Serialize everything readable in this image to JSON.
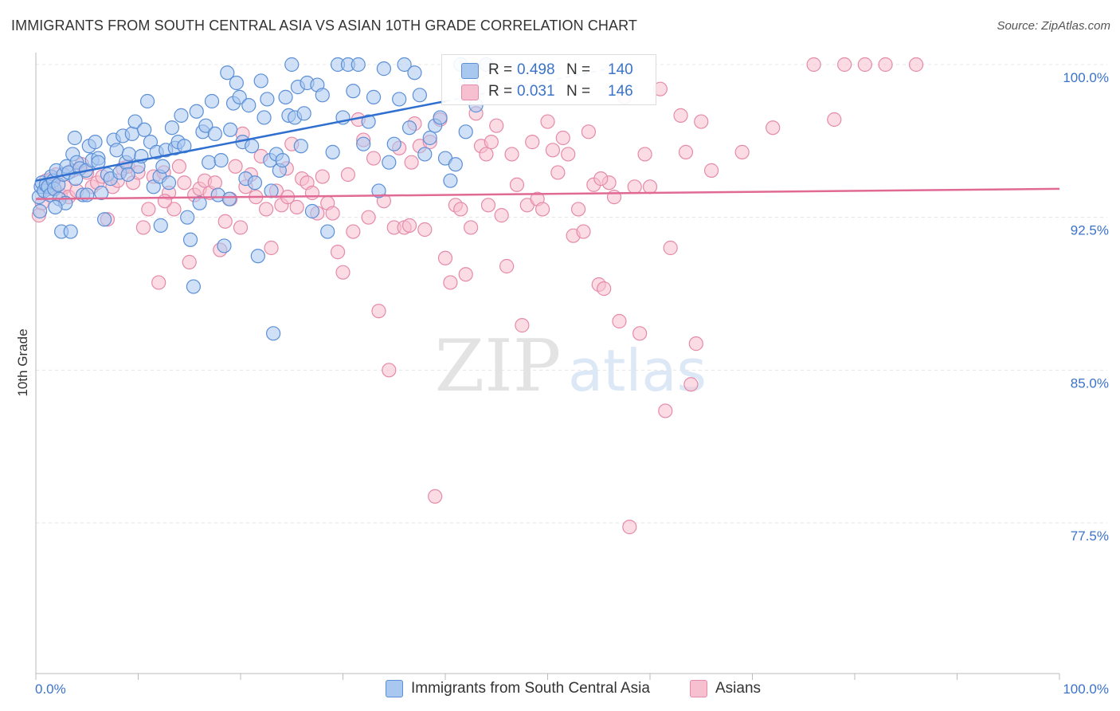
{
  "title": "IMMIGRANTS FROM SOUTH CENTRAL ASIA VS ASIAN 10TH GRADE CORRELATION CHART",
  "source": "Source: ZipAtlas.com",
  "watermark": {
    "zip": "ZIP",
    "atlas": "atlas"
  },
  "colors": {
    "blue_fill": "#a9c8f0",
    "blue_stroke": "#5b8fd6",
    "blue_line": "#2f6fd0",
    "pink_fill": "#f7c0d0",
    "pink_stroke": "#e58aa8",
    "pink_line": "#e06a94",
    "axis_text": "#3b73c9",
    "grid": "#e4e4e4"
  },
  "legend": {
    "rows": [
      {
        "r_label": "R =",
        "r_value": "0.498",
        "n_label": "N =",
        "n_value": "140",
        "color": "blue"
      },
      {
        "r_label": "R =",
        "r_value": "0.031",
        "n_label": "N =",
        "n_value": "146",
        "color": "pink"
      }
    ]
  },
  "bottom_legend": [
    {
      "label": "Immigrants from South Central Asia",
      "color": "blue"
    },
    {
      "label": "Asians",
      "color": "pink"
    }
  ],
  "chart_data": {
    "type": "scatter",
    "title": "IMMIGRANTS FROM SOUTH CENTRAL ASIA VS ASIAN 10TH GRADE CORRELATION CHART",
    "xlabel": "",
    "ylabel": "10th Grade",
    "xlim": [
      0,
      100
    ],
    "ylim": [
      70,
      100.8
    ],
    "x_tick_labels": [
      "0.0%",
      "100.0%"
    ],
    "y_ticks": [
      77.5,
      85.0,
      92.5,
      100.0
    ],
    "y_tick_labels": [
      "77.5%",
      "85.0%",
      "92.5%",
      "100.0%"
    ],
    "grid": true,
    "series": [
      {
        "name": "Immigrants from South Central Asia",
        "color": "blue",
        "trend": {
          "x": [
            0,
            40
          ],
          "y": [
            94.3,
            98.2
          ]
        },
        "points": [
          [
            0.3,
            93.5
          ],
          [
            0.5,
            94.0
          ],
          [
            0.6,
            94.2
          ],
          [
            0.8,
            93.8
          ],
          [
            1.0,
            94.1
          ],
          [
            1.2,
            94.0
          ],
          [
            1.4,
            93.6
          ],
          [
            1.5,
            94.5
          ],
          [
            1.7,
            94.3
          ],
          [
            1.8,
            93.9
          ],
          [
            2.0,
            94.8
          ],
          [
            2.2,
            94.1
          ],
          [
            2.3,
            93.4
          ],
          [
            2.5,
            91.8
          ],
          [
            2.7,
            94.6
          ],
          [
            3.0,
            95.0
          ],
          [
            3.2,
            94.7
          ],
          [
            3.4,
            91.8
          ],
          [
            3.6,
            95.6
          ],
          [
            3.8,
            96.4
          ],
          [
            4.0,
            95.2
          ],
          [
            4.3,
            94.9
          ],
          [
            4.6,
            93.6
          ],
          [
            4.9,
            94.8
          ],
          [
            5.2,
            96.0
          ],
          [
            5.5,
            95.3
          ],
          [
            5.8,
            96.2
          ],
          [
            6.1,
            95.4
          ],
          [
            6.4,
            93.7
          ],
          [
            6.7,
            92.4
          ],
          [
            7.0,
            94.6
          ],
          [
            7.3,
            94.4
          ],
          [
            7.6,
            96.3
          ],
          [
            7.9,
            95.8
          ],
          [
            8.2,
            94.7
          ],
          [
            8.5,
            96.5
          ],
          [
            8.8,
            95.2
          ],
          [
            9.1,
            95.6
          ],
          [
            9.4,
            96.6
          ],
          [
            9.7,
            97.2
          ],
          [
            10.0,
            95.0
          ],
          [
            10.3,
            95.5
          ],
          [
            10.6,
            96.8
          ],
          [
            10.9,
            98.2
          ],
          [
            11.2,
            96.2
          ],
          [
            11.5,
            94.0
          ],
          [
            11.8,
            95.7
          ],
          [
            12.1,
            94.5
          ],
          [
            12.4,
            95.0
          ],
          [
            12.7,
            95.8
          ],
          [
            13.0,
            94.2
          ],
          [
            13.3,
            96.9
          ],
          [
            13.6,
            95.9
          ],
          [
            13.9,
            96.2
          ],
          [
            14.2,
            97.5
          ],
          [
            14.5,
            96.0
          ],
          [
            14.8,
            92.5
          ],
          [
            15.1,
            91.4
          ],
          [
            15.4,
            89.1
          ],
          [
            15.7,
            97.7
          ],
          [
            16.0,
            93.2
          ],
          [
            16.3,
            96.7
          ],
          [
            16.6,
            97.0
          ],
          [
            16.9,
            95.2
          ],
          [
            17.2,
            98.2
          ],
          [
            17.5,
            96.6
          ],
          [
            17.8,
            93.6
          ],
          [
            18.1,
            95.3
          ],
          [
            18.4,
            91.1
          ],
          [
            18.7,
            99.6
          ],
          [
            19.0,
            96.8
          ],
          [
            19.3,
            98.1
          ],
          [
            19.6,
            99.1
          ],
          [
            19.9,
            98.4
          ],
          [
            20.2,
            96.2
          ],
          [
            20.5,
            94.4
          ],
          [
            20.8,
            98.0
          ],
          [
            21.1,
            96.0
          ],
          [
            21.4,
            94.2
          ],
          [
            21.7,
            90.6
          ],
          [
            22.0,
            99.2
          ],
          [
            22.3,
            97.4
          ],
          [
            22.6,
            98.3
          ],
          [
            22.9,
            95.3
          ],
          [
            23.2,
            86.8
          ],
          [
            23.5,
            95.6
          ],
          [
            23.8,
            94.8
          ],
          [
            24.1,
            95.3
          ],
          [
            24.4,
            98.4
          ],
          [
            24.7,
            97.5
          ],
          [
            25.0,
            100.0
          ],
          [
            25.3,
            97.4
          ],
          [
            25.6,
            98.9
          ],
          [
            25.9,
            96.0
          ],
          [
            26.2,
            97.6
          ],
          [
            26.5,
            99.1
          ],
          [
            27.0,
            92.8
          ],
          [
            27.5,
            99.0
          ],
          [
            28.0,
            98.5
          ],
          [
            28.5,
            91.8
          ],
          [
            29.0,
            95.7
          ],
          [
            29.5,
            100.0
          ],
          [
            30.0,
            97.4
          ],
          [
            30.5,
            100.0
          ],
          [
            31.0,
            98.7
          ],
          [
            31.5,
            100.0
          ],
          [
            32.0,
            96.1
          ],
          [
            32.5,
            97.2
          ],
          [
            33.0,
            98.4
          ],
          [
            33.5,
            93.8
          ],
          [
            34.0,
            99.8
          ],
          [
            34.5,
            95.2
          ],
          [
            35.0,
            96.1
          ],
          [
            35.5,
            98.3
          ],
          [
            36.0,
            100.0
          ],
          [
            36.5,
            96.9
          ],
          [
            37.0,
            99.6
          ],
          [
            37.5,
            98.5
          ],
          [
            38.0,
            95.6
          ],
          [
            38.5,
            96.4
          ],
          [
            39.0,
            97.0
          ],
          [
            39.5,
            97.4
          ],
          [
            40.0,
            95.4
          ],
          [
            40.5,
            94.3
          ],
          [
            41.0,
            95.1
          ],
          [
            41.5,
            100.0
          ],
          [
            42.0,
            96.7
          ],
          [
            42.5,
            99.2
          ],
          [
            43.0,
            98.0
          ],
          [
            44.0,
            100.0
          ],
          [
            23.0,
            93.8
          ],
          [
            18.9,
            93.4
          ],
          [
            12.2,
            92.1
          ],
          [
            9.0,
            94.6
          ],
          [
            6.1,
            95.2
          ],
          [
            5.0,
            93.6
          ],
          [
            3.9,
            94.4
          ],
          [
            2.9,
            93.2
          ],
          [
            1.9,
            93.0
          ],
          [
            0.4,
            92.8
          ]
        ]
      },
      {
        "name": "Asians",
        "color": "pink",
        "trend": {
          "x": [
            0,
            100
          ],
          "y": [
            93.4,
            93.9
          ]
        },
        "points": [
          [
            0.3,
            92.6
          ],
          [
            0.6,
            93.2
          ],
          [
            1.0,
            94.3
          ],
          [
            1.3,
            93.9
          ],
          [
            1.6,
            94.4
          ],
          [
            2.0,
            94.6
          ],
          [
            2.4,
            93.6
          ],
          [
            2.8,
            94.0
          ],
          [
            3.2,
            93.5
          ],
          [
            3.6,
            94.8
          ],
          [
            4.0,
            93.8
          ],
          [
            4.5,
            95.1
          ],
          [
            5.0,
            94.7
          ],
          [
            5.5,
            94.0
          ],
          [
            6.0,
            94.2
          ],
          [
            6.5,
            94.5
          ],
          [
            7.0,
            92.4
          ],
          [
            7.5,
            94.0
          ],
          [
            8.0,
            94.3
          ],
          [
            8.5,
            94.9
          ],
          [
            9.0,
            95.0
          ],
          [
            9.5,
            94.2
          ],
          [
            10.0,
            94.7
          ],
          [
            10.5,
            92.0
          ],
          [
            11.0,
            92.9
          ],
          [
            11.5,
            94.5
          ],
          [
            12.0,
            89.3
          ],
          [
            12.5,
            94.7
          ],
          [
            13.0,
            93.7
          ],
          [
            13.5,
            92.9
          ],
          [
            14.0,
            95.0
          ],
          [
            14.5,
            94.2
          ],
          [
            15.0,
            90.3
          ],
          [
            15.5,
            93.6
          ],
          [
            16.0,
            93.9
          ],
          [
            16.5,
            94.3
          ],
          [
            17.0,
            93.7
          ],
          [
            17.5,
            94.2
          ],
          [
            18.0,
            90.9
          ],
          [
            18.5,
            92.3
          ],
          [
            19.0,
            93.4
          ],
          [
            19.5,
            95.0
          ],
          [
            20.0,
            92.0
          ],
          [
            20.5,
            94.0
          ],
          [
            21.0,
            94.6
          ],
          [
            21.5,
            93.5
          ],
          [
            22.0,
            95.5
          ],
          [
            22.5,
            92.9
          ],
          [
            23.0,
            91.0
          ],
          [
            23.5,
            93.8
          ],
          [
            24.0,
            93.1
          ],
          [
            24.5,
            94.9
          ],
          [
            25.0,
            96.1
          ],
          [
            25.5,
            93.0
          ],
          [
            26.0,
            94.4
          ],
          [
            26.5,
            94.2
          ],
          [
            27.0,
            93.7
          ],
          [
            27.5,
            92.7
          ],
          [
            28.0,
            94.5
          ],
          [
            28.5,
            93.2
          ],
          [
            29.0,
            92.7
          ],
          [
            29.5,
            90.8
          ],
          [
            30.0,
            89.8
          ],
          [
            30.5,
            94.6
          ],
          [
            31.0,
            91.8
          ],
          [
            31.5,
            97.3
          ],
          [
            32.0,
            96.3
          ],
          [
            32.5,
            92.5
          ],
          [
            33.0,
            95.4
          ],
          [
            33.5,
            87.9
          ],
          [
            34.0,
            93.3
          ],
          [
            34.5,
            85.0
          ],
          [
            35.0,
            92.0
          ],
          [
            35.5,
            95.9
          ],
          [
            36.0,
            92.0
          ],
          [
            36.5,
            92.1
          ],
          [
            37.0,
            97.1
          ],
          [
            37.5,
            96.0
          ],
          [
            38.0,
            91.9
          ],
          [
            38.5,
            96.2
          ],
          [
            39.0,
            78.8
          ],
          [
            39.5,
            97.3
          ],
          [
            40.0,
            90.5
          ],
          [
            40.5,
            89.3
          ],
          [
            41.0,
            93.1
          ],
          [
            41.5,
            92.9
          ],
          [
            42.0,
            89.7
          ],
          [
            42.5,
            92.0
          ],
          [
            43.0,
            97.6
          ],
          [
            43.5,
            96.0
          ],
          [
            44.0,
            95.6
          ],
          [
            44.5,
            96.2
          ],
          [
            45.0,
            97.0
          ],
          [
            45.5,
            92.6
          ],
          [
            46.0,
            90.1
          ],
          [
            46.5,
            95.6
          ],
          [
            47.0,
            94.1
          ],
          [
            47.5,
            87.2
          ],
          [
            48.0,
            93.1
          ],
          [
            48.5,
            96.2
          ],
          [
            49.0,
            93.4
          ],
          [
            49.5,
            92.9
          ],
          [
            50.0,
            97.2
          ],
          [
            50.5,
            95.8
          ],
          [
            51.0,
            94.7
          ],
          [
            51.5,
            96.4
          ],
          [
            52.0,
            95.6
          ],
          [
            52.5,
            91.6
          ],
          [
            53.0,
            92.9
          ],
          [
            53.5,
            91.8
          ],
          [
            54.0,
            96.7
          ],
          [
            54.5,
            94.1
          ],
          [
            55.0,
            89.2
          ],
          [
            55.5,
            89.0
          ],
          [
            56.0,
            94.2
          ],
          [
            56.5,
            93.5
          ],
          [
            57.0,
            87.4
          ],
          [
            57.5,
            98.4
          ],
          [
            58.0,
            77.3
          ],
          [
            58.5,
            94.0
          ],
          [
            59.0,
            86.8
          ],
          [
            59.5,
            95.6
          ],
          [
            60.0,
            94.0
          ],
          [
            61.0,
            98.8
          ],
          [
            61.5,
            83.0
          ],
          [
            62.0,
            91.0
          ],
          [
            63.0,
            97.5
          ],
          [
            63.5,
            95.7
          ],
          [
            64.0,
            84.3
          ],
          [
            64.5,
            86.3
          ],
          [
            65.0,
            97.2
          ],
          [
            66.0,
            94.8
          ],
          [
            69.0,
            95.7
          ],
          [
            72.0,
            96.9
          ],
          [
            76.0,
            100.0
          ],
          [
            78.0,
            97.3
          ],
          [
            79.0,
            100.0
          ],
          [
            81.0,
            100.0
          ],
          [
            83.0,
            100.0
          ],
          [
            86.0,
            100.0
          ],
          [
            12.6,
            93.3
          ],
          [
            20.2,
            96.6
          ],
          [
            24.6,
            93.5
          ],
          [
            36.7,
            95.2
          ],
          [
            44.2,
            93.1
          ],
          [
            55.2,
            94.4
          ]
        ]
      }
    ]
  }
}
